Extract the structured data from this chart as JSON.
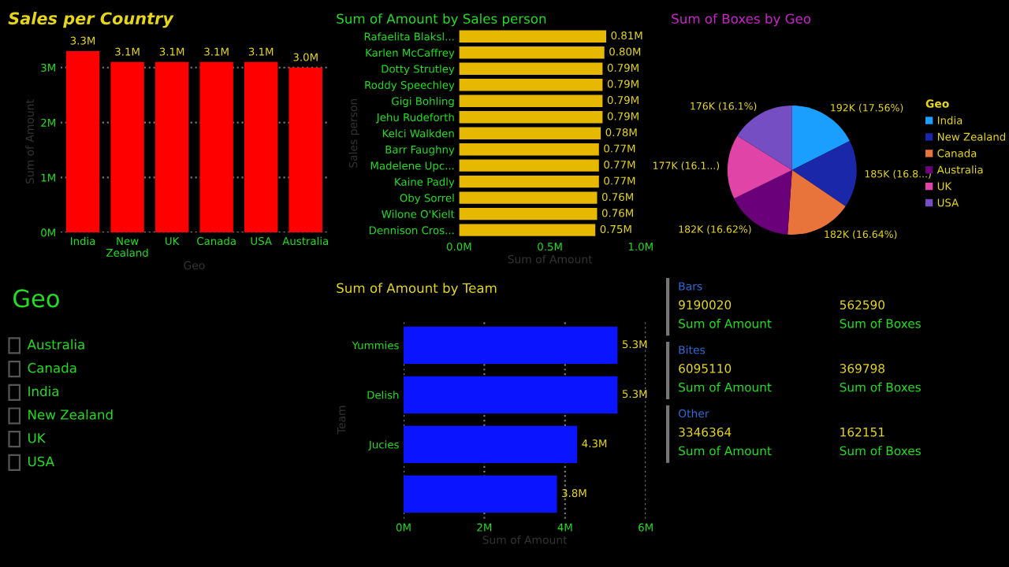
{
  "chart_data": [
    {
      "type": "bar",
      "title": "Sales per Country",
      "xlabel": "Geo",
      "ylabel": "Sum of Amount",
      "categories": [
        "India",
        "New Zealand",
        "UK",
        "Canada",
        "USA",
        "Australia"
      ],
      "values": [
        3.3,
        3.1,
        3.1,
        3.1,
        3.1,
        3.0
      ],
      "color": "#ff0000",
      "value_labels": [
        "3.3M",
        "3.1M",
        "3.1M",
        "3.1M",
        "3.1M",
        "3.0M"
      ],
      "ylim": [
        0,
        3.3
      ],
      "yticks": [
        {
          "value": 0,
          "label": "0M"
        },
        {
          "value": 1,
          "label": "1M"
        },
        {
          "value": 2,
          "label": "2M"
        },
        {
          "value": 3,
          "label": "3M"
        }
      ],
      "grid": "y"
    },
    {
      "type": "bar",
      "orientation": "horizontal",
      "title": "Sum of Amount by Sales person",
      "xlabel": "Sum of Amount",
      "ylabel": "Sales person",
      "categories": [
        "Rafaelita Blaksl...",
        "Karlen McCaffrey",
        "Dotty Strutley",
        "Roddy Speechley",
        "Gigi Bohling",
        "Jehu Rudeforth",
        "Kelci Walkden",
        "Barr Faughny",
        "Madelene Upc...",
        "Kaine Padly",
        "Oby Sorrel",
        "Wilone O'Kielt",
        "Dennison Cros..."
      ],
      "values": [
        0.81,
        0.8,
        0.79,
        0.79,
        0.79,
        0.79,
        0.78,
        0.77,
        0.77,
        0.77,
        0.76,
        0.76,
        0.75
      ],
      "color": "#e6b800",
      "value_labels": [
        "0.81M",
        "0.80M",
        "0.79M",
        "0.79M",
        "0.79M",
        "0.79M",
        "0.78M",
        "0.77M",
        "0.77M",
        "0.77M",
        "0.76M",
        "0.76M",
        "0.75M"
      ],
      "xlim": [
        0,
        1
      ],
      "xticks": [
        {
          "value": 0,
          "label": "0.0M"
        },
        {
          "value": 0.5,
          "label": "0.5M"
        },
        {
          "value": 1,
          "label": "1.0M"
        }
      ]
    },
    {
      "type": "pie",
      "title": "Sum of Boxes by Geo",
      "legend_title": "Geo",
      "legend": "right",
      "categories": [
        "India",
        "New Zealand",
        "Canada",
        "Australia",
        "UK",
        "USA"
      ],
      "values": [
        192000,
        185000,
        182000,
        182000,
        177000,
        176000
      ],
      "colors": [
        "#1a9fff",
        "#1a27a8",
        "#e8743b",
        "#6b007b",
        "#e044a7",
        "#744ec2"
      ],
      "value_labels": [
        "192K (17.56%)",
        "185K (16.8...)",
        "182K (16.64%)",
        "182K (16.62%)",
        "177K (16.1...)",
        "176K (16.1%)"
      ]
    },
    {
      "type": "other",
      "title": "Geo",
      "annotations": [
        "Australia",
        "Canada",
        "India",
        "New Zealand",
        "UK",
        "USA"
      ]
    },
    {
      "type": "bar",
      "orientation": "horizontal",
      "title": "Sum of Amount by Team",
      "xlabel": "Sum of Amount",
      "ylabel": "Team",
      "categories": [
        "Yummies",
        "Delish",
        "Jucies",
        null
      ],
      "values": [
        5.3,
        5.3,
        4.3,
        3.8
      ],
      "color": "#0a14ff",
      "value_labels": [
        "5.3M",
        "5.3M",
        "4.3M",
        "3.8M"
      ],
      "xlim": [
        0,
        6
      ],
      "xticks": [
        {
          "value": 0,
          "label": "0M"
        },
        {
          "value": 2,
          "label": "2M"
        },
        {
          "value": 4,
          "label": "4M"
        },
        {
          "value": 6,
          "label": "6M"
        }
      ],
      "grid": "x"
    },
    {
      "type": "other",
      "annotations": [
        "Bars",
        "9190020",
        "Sum of Amount",
        "562590",
        "Sum of Boxes",
        "Bites",
        "6095110",
        "Sum of Amount",
        "369798",
        "Sum of Boxes",
        "Other",
        "3346364",
        "Sum of Amount",
        "162151",
        "Sum of Boxes"
      ]
    }
  ]
}
